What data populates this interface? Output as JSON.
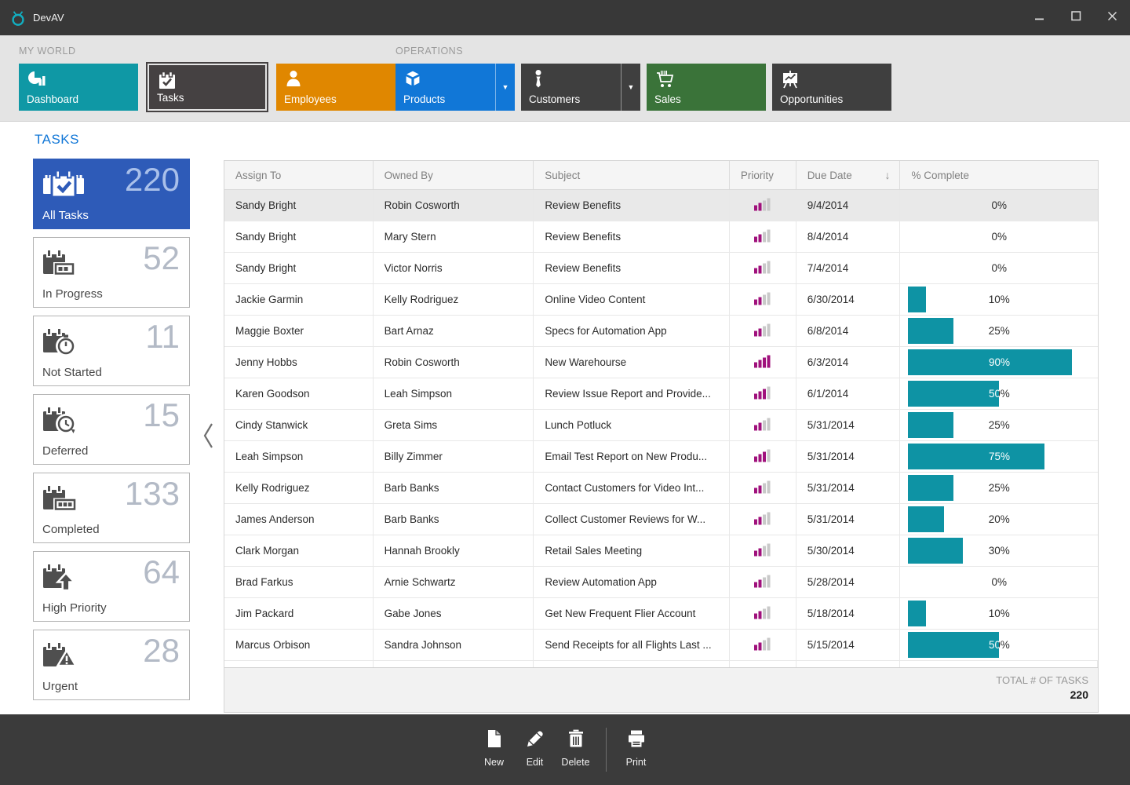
{
  "window": {
    "title": "DevAV"
  },
  "colors": {
    "teal": "#0e93a4",
    "magenta": "#a0117c",
    "bar_gray": "#c9c9c9",
    "accent_blue": "#1177d7",
    "selected_tile_blue": "#2e5bb8",
    "orange": "#e08700",
    "green": "#3a7339",
    "dark_tile": "#3f3f3f",
    "charcoal": "#454142"
  },
  "ribbon": {
    "groups": [
      {
        "label": "MY WORLD",
        "tiles": [
          {
            "id": "dashboard",
            "label": "Dashboard",
            "color": "#0f98a5",
            "icon": "dashboard-icon",
            "selected": false,
            "dropdown": false
          },
          {
            "id": "tasks",
            "label": "Tasks",
            "color": "#454142",
            "icon": "tasks-icon",
            "selected": true,
            "dropdown": false
          },
          {
            "id": "employees",
            "label": "Employees",
            "color": "#e08700",
            "icon": "employees-icon",
            "selected": false,
            "dropdown": false
          }
        ]
      },
      {
        "label": "OPERATIONS",
        "tiles": [
          {
            "id": "products",
            "label": "Products",
            "color": "#1177d7",
            "icon": "products-icon",
            "selected": false,
            "dropdown": true
          },
          {
            "id": "customers",
            "label": "Customers",
            "color": "#3f3f3f",
            "icon": "customers-icon",
            "selected": false,
            "dropdown": true
          },
          {
            "id": "sales",
            "label": "Sales",
            "color": "#3a7339",
            "icon": "sales-icon",
            "selected": false,
            "dropdown": false
          },
          {
            "id": "opportunities",
            "label": "Opportunities",
            "color": "#3f3f3f",
            "icon": "opportunities-icon",
            "selected": false,
            "dropdown": false
          }
        ]
      }
    ]
  },
  "sidebar": {
    "heading": "TASKS",
    "tiles": [
      {
        "label": "All Tasks",
        "count": "220",
        "icon": "all-tasks-icon",
        "selected": true
      },
      {
        "label": "In Progress",
        "count": "52",
        "icon": "in-progress-icon",
        "selected": false
      },
      {
        "label": "Not Started",
        "count": "11",
        "icon": "not-started-icon",
        "selected": false
      },
      {
        "label": "Deferred",
        "count": "15",
        "icon": "deferred-icon",
        "selected": false
      },
      {
        "label": "Completed",
        "count": "133",
        "icon": "completed-icon",
        "selected": false
      },
      {
        "label": "High Priority",
        "count": "64",
        "icon": "high-priority-icon",
        "selected": false
      },
      {
        "label": "Urgent",
        "count": "28",
        "icon": "urgent-icon",
        "selected": false
      }
    ]
  },
  "grid": {
    "columns": [
      "Assign To",
      "Owned By",
      "Subject",
      "Priority",
      "Due Date",
      "% Complete"
    ],
    "sort": {
      "column": "Due Date",
      "direction": "desc"
    },
    "priority_scale_max": 4,
    "rows": [
      {
        "assign_to": "Sandy Bright",
        "owned_by": "Robin Cosworth",
        "subject": "Review Benefits",
        "priority": 2,
        "due_date": "9/4/2014",
        "pct_complete": 0,
        "selected": true
      },
      {
        "assign_to": "Sandy Bright",
        "owned_by": "Mary Stern",
        "subject": "Review Benefits",
        "priority": 2,
        "due_date": "8/4/2014",
        "pct_complete": 0,
        "selected": false
      },
      {
        "assign_to": "Sandy Bright",
        "owned_by": "Victor Norris",
        "subject": "Review Benefits",
        "priority": 2,
        "due_date": "7/4/2014",
        "pct_complete": 0,
        "selected": false
      },
      {
        "assign_to": "Jackie Garmin",
        "owned_by": "Kelly Rodriguez",
        "subject": "Online Video Content",
        "priority": 2,
        "due_date": "6/30/2014",
        "pct_complete": 10,
        "selected": false
      },
      {
        "assign_to": "Maggie Boxter",
        "owned_by": "Bart Arnaz",
        "subject": "Specs for Automation App",
        "priority": 2,
        "due_date": "6/8/2014",
        "pct_complete": 25,
        "selected": false
      },
      {
        "assign_to": "Jenny Hobbs",
        "owned_by": "Robin Cosworth",
        "subject": "New Warehourse",
        "priority": 4,
        "due_date": "6/3/2014",
        "pct_complete": 90,
        "selected": false
      },
      {
        "assign_to": "Karen Goodson",
        "owned_by": "Leah Simpson",
        "subject": "Review Issue Report and Provide...",
        "priority": 3,
        "due_date": "6/1/2014",
        "pct_complete": 50,
        "selected": false
      },
      {
        "assign_to": "Cindy Stanwick",
        "owned_by": "Greta Sims",
        "subject": "Lunch Potluck",
        "priority": 2,
        "due_date": "5/31/2014",
        "pct_complete": 25,
        "selected": false
      },
      {
        "assign_to": "Leah Simpson",
        "owned_by": "Billy Zimmer",
        "subject": "Email Test Report on New Produ...",
        "priority": 3,
        "due_date": "5/31/2014",
        "pct_complete": 75,
        "selected": false
      },
      {
        "assign_to": "Kelly Rodriguez",
        "owned_by": "Barb Banks",
        "subject": "Contact Customers for Video Int...",
        "priority": 2,
        "due_date": "5/31/2014",
        "pct_complete": 25,
        "selected": false
      },
      {
        "assign_to": "James Anderson",
        "owned_by": "Barb Banks",
        "subject": "Collect Customer Reviews for W...",
        "priority": 2,
        "due_date": "5/31/2014",
        "pct_complete": 20,
        "selected": false
      },
      {
        "assign_to": "Clark Morgan",
        "owned_by": "Hannah Brookly",
        "subject": "Retail Sales Meeting",
        "priority": 2,
        "due_date": "5/30/2014",
        "pct_complete": 30,
        "selected": false
      },
      {
        "assign_to": "Brad Farkus",
        "owned_by": "Arnie Schwartz",
        "subject": "Review Automation App",
        "priority": 2,
        "due_date": "5/28/2014",
        "pct_complete": 0,
        "selected": false
      },
      {
        "assign_to": "Jim Packard",
        "owned_by": "Gabe Jones",
        "subject": "Get New Frequent Flier Account",
        "priority": 2,
        "due_date": "5/18/2014",
        "pct_complete": 10,
        "selected": false
      },
      {
        "assign_to": "Marcus Orbison",
        "owned_by": "Sandra Johnson",
        "subject": "Send Receipts for all Flights Last ...",
        "priority": 2,
        "due_date": "5/15/2014",
        "pct_complete": 50,
        "selected": false
      }
    ],
    "footer": {
      "label": "TOTAL # OF TASKS",
      "value": "220"
    }
  },
  "toolbar": {
    "items": [
      {
        "label": "New",
        "icon": "new-icon",
        "separator_before": false
      },
      {
        "label": "Edit",
        "icon": "edit-icon",
        "separator_before": false
      },
      {
        "label": "Delete",
        "icon": "delete-icon",
        "separator_before": false
      },
      {
        "label": "Print",
        "icon": "print-icon",
        "separator_before": true
      }
    ]
  }
}
